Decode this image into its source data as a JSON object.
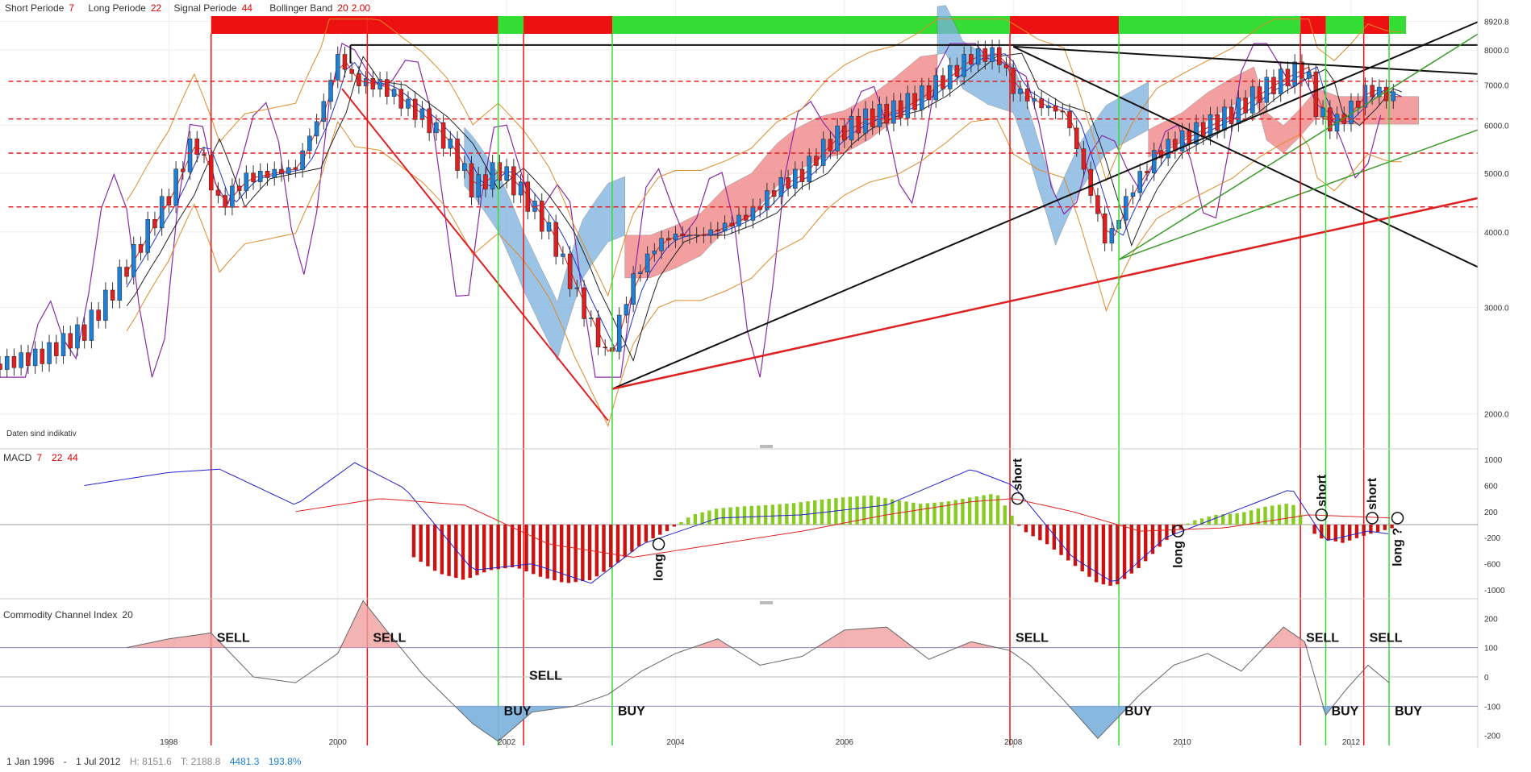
{
  "header": {
    "short_label": "Short Periode",
    "short_value": "7",
    "long_label": "Long Periode",
    "long_value": "22",
    "signal_label": "Signal Periode",
    "signal_value": "44",
    "bb_label": "Bollinger Band",
    "bb_period": "20",
    "bb_dev": "2.00"
  },
  "disclaimer": "Daten sind indikativ",
  "macd_title": "MACD",
  "macd_params": [
    "7",
    "22",
    "44"
  ],
  "cci_title": "Commodity Channel Index",
  "cci_param": "20",
  "footer": {
    "start": "1 Jan 1996",
    "dash": "-",
    "end": "1 Jul 2012",
    "high": "H: 8151.6",
    "low": "T: 2188.8",
    "change_abs": "4481.3",
    "change_pct": "193.8%"
  },
  "annotations": {
    "signals": [
      {
        "label": "SELL",
        "date": 1998.5
      },
      {
        "label": "SELL",
        "date": 2000.35
      },
      {
        "label": "BUY",
        "date": 2001.9
      },
      {
        "label": "SELL",
        "date": 2002.2
      },
      {
        "label": "BUY",
        "date": 2003.25
      },
      {
        "label": "SELL",
        "date": 2007.96
      },
      {
        "label": "BUY",
        "date": 2009.25
      },
      {
        "label": "SELL",
        "date": 2011.4
      },
      {
        "label": "BUY",
        "date": 2011.7
      },
      {
        "label": "SELL",
        "date": 2012.15
      },
      {
        "label": "BUY",
        "date": 2012.45
      }
    ],
    "macd_marks": [
      "long",
      "short",
      "long",
      "short",
      "short",
      "long ?"
    ]
  },
  "colors": {
    "bull_candle": "#1e7fd6",
    "bear_candle": "#e02020",
    "signal_buy": "#33dd33",
    "signal_sell": "#ee1111",
    "cloud_bull": "#7ab0dd",
    "cloud_bear": "#ef7f7f",
    "macd_line": "#2222cc",
    "macd_signal": "#dd2222",
    "hist_pos": "#88cc22",
    "hist_neg": "#cc1111",
    "cci_line": "#666666",
    "cci_pos_fill": "#f0a0a0",
    "cci_neg_fill": "#7ab0dd",
    "purple_line": "#8a2aa8"
  },
  "chart_data": [
    {
      "type": "candlestick",
      "title": "",
      "y_scale": "log",
      "y_ticks": [
        2000.0,
        3000.0,
        4000.0,
        5000.0,
        6000.0,
        7000.0,
        8000.0,
        8920.8
      ],
      "x_ticks": [
        "1998",
        "2000",
        "2002",
        "2004",
        "2006",
        "2008",
        "2010",
        "2012"
      ],
      "x_range": [
        1996,
        2013.5
      ],
      "high": 8151.6,
      "low": 2188.8,
      "series": [
        {
          "kind": "close",
          "x": [
            1996.0,
            1996.5,
            1997.0,
            1997.3,
            1997.6,
            1998.0,
            1998.3,
            1998.6,
            1998.9,
            1999.2,
            1999.5,
            1999.8,
            2000.0,
            2000.2,
            2000.5,
            2000.8,
            2001.0,
            2001.3,
            2001.6,
            2001.9,
            2002.2,
            2002.5,
            2002.8,
            2003.0,
            2003.2,
            2003.5,
            2003.8,
            2004.0,
            2004.3,
            2004.6,
            2004.9,
            2005.2,
            2005.5,
            2005.8,
            2006.0,
            2006.3,
            2006.6,
            2006.9,
            2007.2,
            2007.5,
            2007.8,
            2008.0,
            2008.3,
            2008.6,
            2008.9,
            2009.1,
            2009.4,
            2009.7,
            2010.0,
            2010.3,
            2010.6,
            2010.9,
            2011.2,
            2011.45,
            2011.6,
            2011.8,
            2012.0,
            2012.2,
            2012.45
          ],
          "y": [
            2420,
            2500,
            2750,
            3150,
            3700,
            4600,
            5700,
            4400,
            4900,
            5000,
            5100,
            6300,
            7800,
            7100,
            7000,
            6500,
            6200,
            5600,
            4700,
            5100,
            4600,
            4000,
            3200,
            2800,
            2450,
            3350,
            3850,
            3950,
            3950,
            4100,
            4300,
            4750,
            5000,
            5600,
            5900,
            6200,
            6350,
            6700,
            7200,
            7800,
            7900,
            6900,
            6500,
            6300,
            4700,
            3800,
            4700,
            5400,
            5700,
            6000,
            6300,
            6800,
            7200,
            7500,
            6300,
            6000,
            6400,
            6900,
            6700
          ]
        },
        {
          "kind": "sma_bands",
          "note": "Bollinger Band 20 2.00"
        },
        {
          "kind": "horizontal_levels",
          "y": [
            7100,
            6150,
            5400,
            4400
          ]
        }
      ]
    },
    {
      "type": "bar",
      "title": "MACD",
      "y_ticks": [
        1000,
        600,
        200,
        -200,
        -600,
        -1000
      ],
      "ylim": [
        -1100,
        1100
      ],
      "series": [
        {
          "name": "histogram",
          "x": [
            2000.9,
            2001.2,
            2001.5,
            2001.8,
            2002.1,
            2002.4,
            2002.7,
            2003.0,
            2003.3,
            2003.6,
            2003.9,
            2004.2,
            2004.5,
            2004.8,
            2005.1,
            2005.4,
            2005.7,
            2006.0,
            2006.3,
            2006.6,
            2006.9,
            2007.2,
            2007.5,
            2007.8,
            2008.1,
            2008.4,
            2008.7,
            2009.0,
            2009.2,
            2009.5,
            2009.8,
            2010.1,
            2010.4,
            2010.7,
            2011.0,
            2011.3,
            2011.6,
            2011.9,
            2012.2,
            2012.5
          ],
          "y": [
            -500,
            -750,
            -850,
            -700,
            -650,
            -800,
            -900,
            -850,
            -600,
            -300,
            -100,
            150,
            250,
            280,
            300,
            330,
            380,
            420,
            450,
            380,
            320,
            350,
            420,
            480,
            -80,
            -300,
            -600,
            -900,
            -950,
            -650,
            -250,
            50,
            150,
            180,
            280,
            330,
            -200,
            -280,
            -150,
            -50
          ]
        },
        {
          "name": "line",
          "x": [
            1997.0,
            1998.0,
            1998.6,
            1999.5,
            2000.2,
            2000.8,
            2001.6,
            2002.3,
            2003.0,
            2003.6,
            2004.5,
            2005.5,
            2006.5,
            2007.5,
            2008.0,
            2008.7,
            2009.2,
            2009.8,
            2010.5,
            2011.3,
            2011.7,
            2012.2,
            2012.5
          ],
          "y": [
            600,
            800,
            850,
            300,
            950,
            550,
            -700,
            -600,
            -900,
            -300,
            100,
            150,
            300,
            850,
            600,
            -500,
            -900,
            -200,
            150,
            550,
            -250,
            -100,
            -150
          ]
        },
        {
          "name": "signal",
          "x": [
            1999.5,
            2000.5,
            2001.5,
            2002.5,
            2003.5,
            2004.5,
            2005.5,
            2006.5,
            2007.5,
            2008.0,
            2008.7,
            2009.5,
            2010.5,
            2011.5,
            2012.5
          ],
          "y": [
            200,
            400,
            300,
            -300,
            -500,
            -300,
            -100,
            150,
            350,
            400,
            200,
            -100,
            -50,
            150,
            100
          ]
        }
      ]
    },
    {
      "type": "area",
      "title": "Commodity Channel Index",
      "y_ticks": [
        200,
        100,
        0,
        -100,
        -200
      ],
      "ylim": [
        -220,
        220
      ],
      "series": [
        {
          "name": "CCI 20",
          "x": [
            1997.5,
            1998.0,
            1998.5,
            1999.0,
            1999.5,
            2000.0,
            2000.3,
            2000.6,
            2001.0,
            2001.6,
            2001.9,
            2002.3,
            2002.8,
            2003.2,
            2003.6,
            2004.0,
            2004.5,
            2005.0,
            2005.5,
            2006.0,
            2006.5,
            2007.0,
            2007.5,
            2007.96,
            2008.2,
            2008.6,
            2009.0,
            2009.2,
            2009.5,
            2009.9,
            2010.3,
            2010.7,
            2011.2,
            2011.45,
            2011.7,
            2011.95,
            2012.2,
            2012.45
          ],
          "y": [
            100,
            130,
            150,
            0,
            -20,
            80,
            260,
            150,
            10,
            -160,
            -220,
            -120,
            -100,
            -60,
            20,
            80,
            130,
            40,
            70,
            160,
            170,
            60,
            120,
            90,
            40,
            -80,
            -210,
            -150,
            -60,
            40,
            80,
            20,
            170,
            120,
            -130,
            -40,
            40,
            -20
          ]
        }
      ]
    }
  ]
}
